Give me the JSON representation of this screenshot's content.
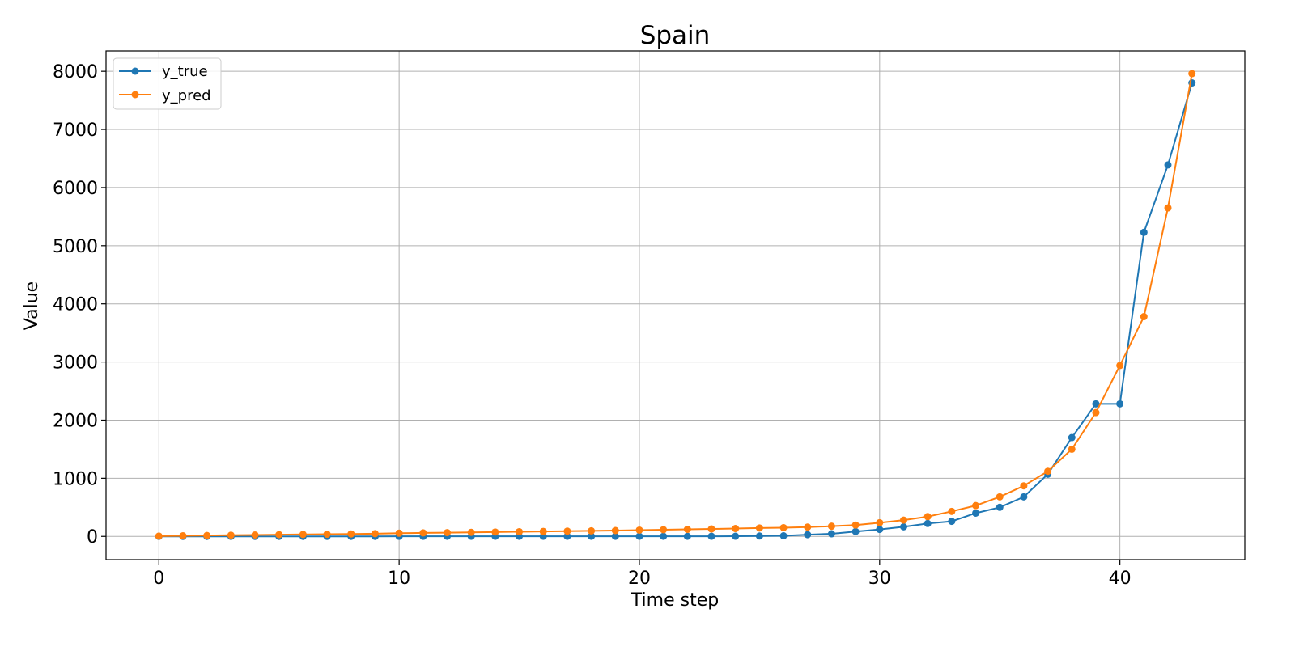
{
  "chart_data": {
    "type": "line",
    "title": "Spain",
    "xlabel": "Time step",
    "ylabel": "Value",
    "xlim": [
      -2.2,
      45.2
    ],
    "ylim": [
      -400,
      8350
    ],
    "xticks": [
      0,
      10,
      20,
      30,
      40
    ],
    "yticks": [
      0,
      1000,
      2000,
      3000,
      4000,
      5000,
      6000,
      7000,
      8000
    ],
    "grid": true,
    "legend_position": "upper left",
    "x": [
      0,
      1,
      2,
      3,
      4,
      5,
      6,
      7,
      8,
      9,
      10,
      11,
      12,
      13,
      14,
      15,
      16,
      17,
      18,
      19,
      20,
      21,
      22,
      23,
      24,
      25,
      26,
      27,
      28,
      29,
      30,
      31,
      32,
      33,
      34,
      35,
      36,
      37,
      38,
      39,
      40,
      41,
      42,
      43
    ],
    "series": [
      {
        "name": "y_true",
        "color": "#1f77b4",
        "values": [
          0,
          0,
          0,
          0,
          0,
          0,
          0,
          0,
          0,
          0,
          1,
          1,
          2,
          2,
          2,
          2,
          2,
          2,
          2,
          2,
          2,
          2,
          2,
          2,
          3,
          6,
          10,
          30,
          45,
          84,
          120,
          165,
          222,
          259,
          400,
          500,
          680,
          1070,
          1700,
          2280,
          2280,
          5230,
          6390,
          7800
        ]
      },
      {
        "name": "y_pred",
        "color": "#ff7f0e",
        "values": [
          5,
          10,
          15,
          20,
          25,
          30,
          34,
          38,
          42,
          47,
          55,
          60,
          65,
          70,
          75,
          80,
          85,
          90,
          95,
          100,
          108,
          115,
          121,
          128,
          135,
          145,
          150,
          160,
          175,
          195,
          235,
          280,
          340,
          430,
          530,
          680,
          870,
          1120,
          1500,
          2130,
          2940,
          3780,
          5650,
          7960
        ]
      }
    ]
  }
}
